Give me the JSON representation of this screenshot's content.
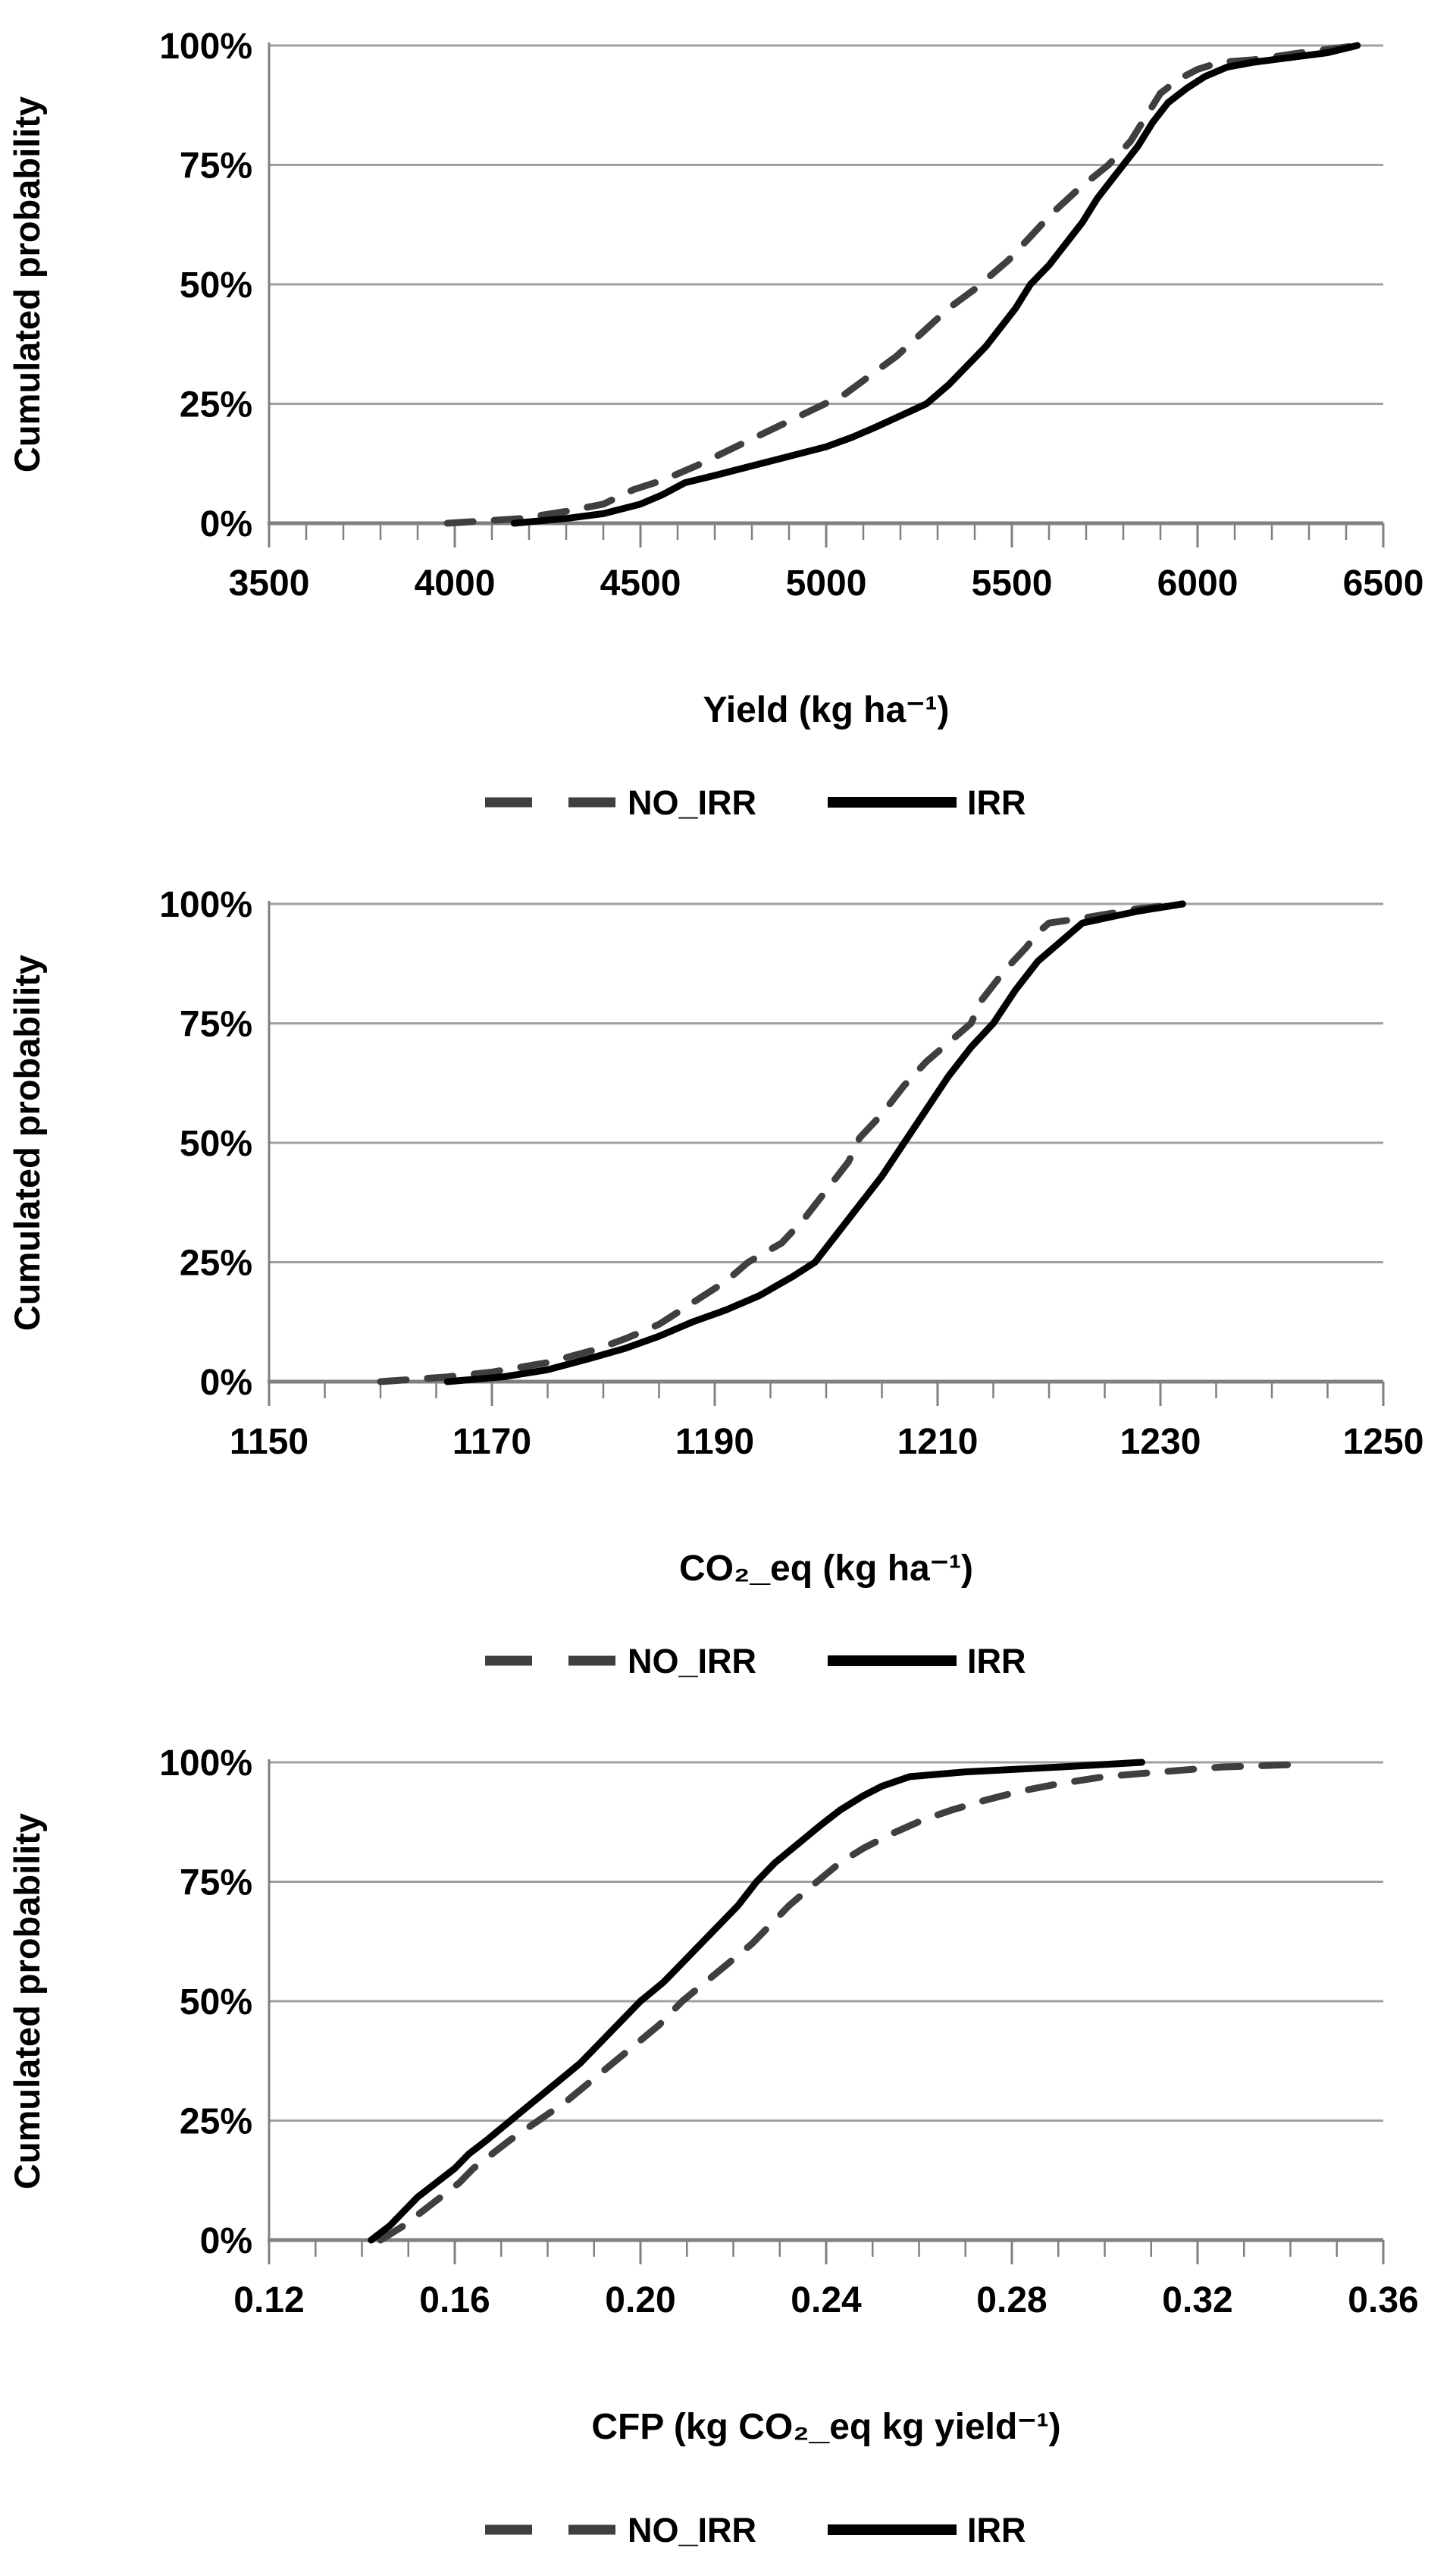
{
  "page": {
    "background": "#ffffff"
  },
  "colors": {
    "gridline": "#a0a0a0",
    "axis": "#808080",
    "text": "#000000",
    "no_irr": "#3f3f3f",
    "irr": "#000000"
  },
  "chart_data": [
    {
      "name": "yield-cdf",
      "type": "line",
      "ylabel": "Cumulated probability",
      "xlabel": "Yield (kg ha⁻¹)",
      "grid": true,
      "legend_position": "bottom",
      "ylim": [
        0,
        100
      ],
      "y_ticks": [
        {
          "pct": 0,
          "label": "0%"
        },
        {
          "pct": 25,
          "label": "25%"
        },
        {
          "pct": 50,
          "label": "50%"
        },
        {
          "pct": 75,
          "label": "75%"
        },
        {
          "pct": 100,
          "label": "100%"
        }
      ],
      "x_axis": {
        "min": 3500,
        "max": 6500,
        "major_step": 500,
        "minor_step": 100,
        "tick_labels": [
          "3500",
          "4000",
          "4500",
          "5000",
          "5500",
          "6000",
          "6500"
        ]
      },
      "legend": [
        {
          "label": "NO_IRR",
          "style": "dashed",
          "color": "#3f3f3f"
        },
        {
          "label": "IRR",
          "style": "solid",
          "color": "#000000"
        }
      ],
      "series": [
        {
          "name": "NO_IRR",
          "style": "dashed",
          "color": "#3f3f3f",
          "points": [
            [
              3980,
              0
            ],
            [
              4080,
              0.5
            ],
            [
              4180,
              1
            ],
            [
              4300,
              2.5
            ],
            [
              4400,
              4
            ],
            [
              4480,
              7
            ],
            [
              4560,
              9
            ],
            [
              4650,
              12
            ],
            [
              4730,
              15
            ],
            [
              4810,
              18
            ],
            [
              4890,
              21
            ],
            [
              4970,
              24
            ],
            [
              5050,
              27
            ],
            [
              5120,
              31
            ],
            [
              5190,
              35
            ],
            [
              5260,
              40
            ],
            [
              5330,
              45
            ],
            [
              5400,
              49
            ],
            [
              5430,
              51
            ],
            [
              5490,
              55
            ],
            [
              5550,
              60
            ],
            [
              5610,
              65
            ],
            [
              5680,
              70
            ],
            [
              5760,
              75
            ],
            [
              5820,
              80
            ],
            [
              5860,
              85
            ],
            [
              5900,
              90
            ],
            [
              5950,
              93
            ],
            [
              6000,
              95
            ],
            [
              6060,
              96.5
            ],
            [
              6150,
              97
            ],
            [
              6280,
              98.5
            ],
            [
              6430,
              100
            ]
          ]
        },
        {
          "name": "IRR",
          "style": "solid",
          "color": "#000000",
          "points": [
            [
              4160,
              0
            ],
            [
              4300,
              1
            ],
            [
              4400,
              2
            ],
            [
              4500,
              4
            ],
            [
              4560,
              6
            ],
            [
              4620,
              8.5
            ],
            [
              4700,
              10
            ],
            [
              4800,
              12
            ],
            [
              4900,
              14
            ],
            [
              5000,
              16
            ],
            [
              5070,
              18
            ],
            [
              5130,
              20
            ],
            [
              5200,
              22.5
            ],
            [
              5270,
              25
            ],
            [
              5330,
              29
            ],
            [
              5380,
              33
            ],
            [
              5430,
              37
            ],
            [
              5470,
              41
            ],
            [
              5510,
              45
            ],
            [
              5550,
              50
            ],
            [
              5600,
              54
            ],
            [
              5650,
              59
            ],
            [
              5690,
              63
            ],
            [
              5730,
              68
            ],
            [
              5770,
              72
            ],
            [
              5800,
              75
            ],
            [
              5840,
              79
            ],
            [
              5880,
              84
            ],
            [
              5920,
              88
            ],
            [
              5970,
              91
            ],
            [
              6020,
              93.5
            ],
            [
              6080,
              95.5
            ],
            [
              6150,
              96.5
            ],
            [
              6250,
              97.5
            ],
            [
              6350,
              98.5
            ],
            [
              6430,
              100
            ]
          ]
        }
      ]
    },
    {
      "name": "co2eq-cdf",
      "type": "line",
      "ylabel": "Cumulated probability",
      "xlabel": "CO₂_eq (kg ha⁻¹)",
      "grid": true,
      "legend_position": "bottom",
      "ylim": [
        0,
        100
      ],
      "y_ticks": [
        {
          "pct": 0,
          "label": "0%"
        },
        {
          "pct": 25,
          "label": "25%"
        },
        {
          "pct": 50,
          "label": "50%"
        },
        {
          "pct": 75,
          "label": "75%"
        },
        {
          "pct": 100,
          "label": "100%"
        }
      ],
      "x_axis": {
        "min": 1150,
        "max": 1250,
        "major_step": 20,
        "minor_step": 5,
        "tick_labels": [
          "1150",
          "1170",
          "1190",
          "1210",
          "1230",
          "1250"
        ]
      },
      "legend": [
        {
          "label": "NO_IRR",
          "style": "dashed",
          "color": "#3f3f3f"
        },
        {
          "label": "IRR",
          "style": "solid",
          "color": "#000000"
        }
      ],
      "series": [
        {
          "name": "NO_IRR",
          "style": "dashed",
          "color": "#3f3f3f",
          "points": [
            [
              1160,
              0
            ],
            [
              1166,
              1
            ],
            [
              1170,
              2
            ],
            [
              1175,
              4
            ],
            [
              1179,
              6.5
            ],
            [
              1182,
              9
            ],
            [
              1185,
              12
            ],
            [
              1187,
              15
            ],
            [
              1189,
              18
            ],
            [
              1191,
              21
            ],
            [
              1193,
              25
            ],
            [
              1196,
              29
            ],
            [
              1198,
              34
            ],
            [
              1200,
              40
            ],
            [
              1202,
              46
            ],
            [
              1203,
              51
            ],
            [
              1205,
              56
            ],
            [
              1207,
              62
            ],
            [
              1209,
              67
            ],
            [
              1211,
              71
            ],
            [
              1213,
              75
            ],
            [
              1214,
              80
            ],
            [
              1216,
              86
            ],
            [
              1218,
              91
            ],
            [
              1219,
              94
            ],
            [
              1220,
              96
            ],
            [
              1223,
              97
            ],
            [
              1228,
              99
            ],
            [
              1232,
              100
            ]
          ]
        },
        {
          "name": "IRR",
          "style": "solid",
          "color": "#000000",
          "points": [
            [
              1166,
              0
            ],
            [
              1171,
              1
            ],
            [
              1175,
              2.5
            ],
            [
              1179,
              5
            ],
            [
              1182,
              7
            ],
            [
              1185,
              9.5
            ],
            [
              1188,
              12.5
            ],
            [
              1191,
              15
            ],
            [
              1194,
              18
            ],
            [
              1197,
              22
            ],
            [
              1199,
              25
            ],
            [
              1201,
              31
            ],
            [
              1203,
              37
            ],
            [
              1205,
              43
            ],
            [
              1207,
              50
            ],
            [
              1209,
              57
            ],
            [
              1211,
              64
            ],
            [
              1213,
              70
            ],
            [
              1215,
              75
            ],
            [
              1217,
              82
            ],
            [
              1219,
              88
            ],
            [
              1221,
              92
            ],
            [
              1223,
              96
            ],
            [
              1225,
              97
            ],
            [
              1228,
              98.5
            ],
            [
              1232,
              100
            ]
          ]
        }
      ]
    },
    {
      "name": "cfp-cdf",
      "type": "line",
      "ylabel": "Cumulated probability",
      "xlabel": "CFP (kg CO₂_eq kg yield⁻¹)",
      "grid": true,
      "legend_position": "bottom",
      "ylim": [
        0,
        100
      ],
      "y_ticks": [
        {
          "pct": 0,
          "label": "0%"
        },
        {
          "pct": 25,
          "label": "25%"
        },
        {
          "pct": 50,
          "label": "50%"
        },
        {
          "pct": 75,
          "label": "75%"
        },
        {
          "pct": 100,
          "label": "100%"
        }
      ],
      "x_axis": {
        "min": 0.12,
        "max": 0.36,
        "major_step": 0.04,
        "minor_step": 0.01,
        "tick_labels": [
          "0.12",
          "0.16",
          "0.20",
          "0.24",
          "0.28",
          "0.32",
          "0.36"
        ]
      },
      "legend": [
        {
          "label": "NO_IRR",
          "style": "dashed",
          "color": "#3f3f3f"
        },
        {
          "label": "IRR",
          "style": "solid",
          "color": "#000000"
        }
      ],
      "series": [
        {
          "name": "NO_IRR",
          "style": "dashed",
          "color": "#3f3f3f",
          "points": [
            [
              0.144,
              0
            ],
            [
              0.149,
              3
            ],
            [
              0.153,
              6
            ],
            [
              0.157,
              9
            ],
            [
              0.161,
              12
            ],
            [
              0.164,
              15
            ],
            [
              0.168,
              18
            ],
            [
              0.172,
              21
            ],
            [
              0.178,
              25
            ],
            [
              0.184,
              29
            ],
            [
              0.189,
              33
            ],
            [
              0.194,
              37
            ],
            [
              0.199,
              41
            ],
            [
              0.204,
              45
            ],
            [
              0.209,
              50
            ],
            [
              0.214,
              54
            ],
            [
              0.219,
              58
            ],
            [
              0.224,
              62
            ],
            [
              0.228,
              66
            ],
            [
              0.232,
              70
            ],
            [
              0.238,
              75
            ],
            [
              0.243,
              79
            ],
            [
              0.248,
              82
            ],
            [
              0.254,
              85
            ],
            [
              0.261,
              88
            ],
            [
              0.267,
              90
            ],
            [
              0.274,
              92
            ],
            [
              0.282,
              94
            ],
            [
              0.29,
              95.5
            ],
            [
              0.3,
              97
            ],
            [
              0.312,
              98
            ],
            [
              0.325,
              99
            ],
            [
              0.34,
              99.5
            ]
          ]
        },
        {
          "name": "IRR",
          "style": "solid",
          "color": "#000000",
          "points": [
            [
              0.142,
              0
            ],
            [
              0.146,
              3
            ],
            [
              0.149,
              6
            ],
            [
              0.152,
              9
            ],
            [
              0.156,
              12
            ],
            [
              0.16,
              15
            ],
            [
              0.163,
              18
            ],
            [
              0.167,
              21
            ],
            [
              0.172,
              25
            ],
            [
              0.177,
              29
            ],
            [
              0.182,
              33
            ],
            [
              0.187,
              37
            ],
            [
              0.191,
              41
            ],
            [
              0.195,
              45
            ],
            [
              0.2,
              50
            ],
            [
              0.205,
              54
            ],
            [
              0.209,
              58
            ],
            [
              0.213,
              62
            ],
            [
              0.217,
              66
            ],
            [
              0.221,
              70
            ],
            [
              0.225,
              75
            ],
            [
              0.229,
              79
            ],
            [
              0.234,
              83
            ],
            [
              0.239,
              87
            ],
            [
              0.243,
              90
            ],
            [
              0.248,
              93
            ],
            [
              0.252,
              95
            ],
            [
              0.258,
              97
            ],
            [
              0.27,
              98
            ],
            [
              0.29,
              99
            ],
            [
              0.308,
              100
            ]
          ]
        }
      ]
    }
  ]
}
